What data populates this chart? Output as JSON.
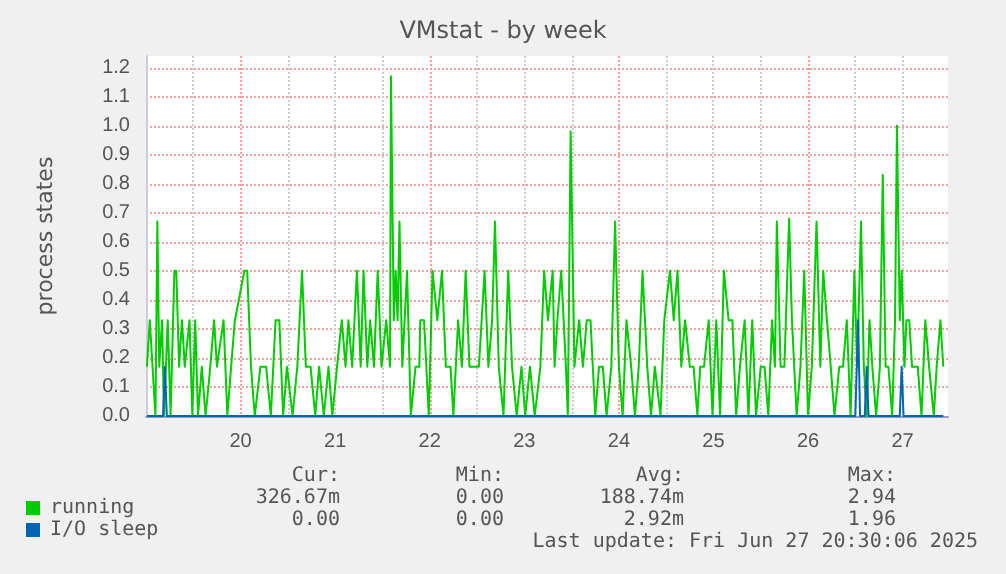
{
  "chart_data": {
    "type": "line",
    "title": "VMstat - by week",
    "ylabel": "process states",
    "xlim": [
      19.0,
      27.48
    ],
    "xticks": [
      20,
      21,
      22,
      23,
      24,
      25,
      26,
      27
    ],
    "ylim": [
      0,
      1.24
    ],
    "yticks": [
      {
        "value": 0,
        "label": "0.0"
      },
      {
        "value": 0.1,
        "label": "0.1"
      },
      {
        "value": 0.2,
        "label": "0.2"
      },
      {
        "value": 0.3,
        "label": "0.3"
      },
      {
        "value": 0.4,
        "label": "0.4"
      },
      {
        "value": 0.5,
        "label": "0.5"
      },
      {
        "value": 0.6,
        "label": "0.6"
      },
      {
        "value": 0.7,
        "label": "0.7"
      },
      {
        "value": 0.8,
        "label": "0.8"
      },
      {
        "value": 0.9,
        "label": "0.9"
      },
      {
        "value": 1,
        "label": "1.0"
      },
      {
        "value": 1.1,
        "label": "1.1"
      },
      {
        "value": 1.2,
        "label": "1.2"
      }
    ],
    "grid": true,
    "legend": "bottom left",
    "marker": "none",
    "line_style": "solid",
    "series": [
      {
        "name": "running",
        "color": "#00cc00",
        "x": [
          19.01,
          19.04,
          19.1,
          19.12,
          19.14,
          19.17,
          19.19,
          19.23,
          19.26,
          19.3,
          19.32,
          19.35,
          19.38,
          19.41,
          19.46,
          19.49,
          19.52,
          19.55,
          19.59,
          19.63,
          19.68,
          19.72,
          19.75,
          19.82,
          19.86,
          19.9,
          19.94,
          20.04,
          20.07,
          20.11,
          20.15,
          20.21,
          20.27,
          20.32,
          20.37,
          20.41,
          20.45,
          20.49,
          20.55,
          20.6,
          20.65,
          20.69,
          20.74,
          20.79,
          20.83,
          20.88,
          20.93,
          20.97,
          21.02,
          21.07,
          21.11,
          21.14,
          21.18,
          21.23,
          21.27,
          21.3,
          21.34,
          21.37,
          21.41,
          21.45,
          21.49,
          21.54,
          21.58,
          21.59,
          21.62,
          21.64,
          21.66,
          21.68,
          21.71,
          21.76,
          21.8,
          21.85,
          21.89,
          21.9,
          21.94,
          21.99,
          22.03,
          22.08,
          22.13,
          22.17,
          22.22,
          22.25,
          22.3,
          22.34,
          22.38,
          22.42,
          22.48,
          22.52,
          22.58,
          22.62,
          22.66,
          22.69,
          22.73,
          22.78,
          22.83,
          22.87,
          22.92,
          22.97,
          23.01,
          23.06,
          23.11,
          23.17,
          23.21,
          23.25,
          23.3,
          23.32,
          23.35,
          23.39,
          23.44,
          23.46,
          23.49,
          23.53,
          23.58,
          23.62,
          23.66,
          23.7,
          23.75,
          23.79,
          23.83,
          23.87,
          23.92,
          23.96,
          24.0,
          24.04,
          24.08,
          24.13,
          24.17,
          24.21,
          24.25,
          24.3,
          24.34,
          24.38,
          24.44,
          24.48,
          24.54,
          24.58,
          24.62,
          24.66,
          24.7,
          24.75,
          24.79,
          24.83,
          24.86,
          24.9,
          24.95,
          24.99,
          25.03,
          25.07,
          25.11,
          25.16,
          25.2,
          25.24,
          25.28,
          25.33,
          25.37,
          25.41,
          25.45,
          25.5,
          25.54,
          25.58,
          25.62,
          25.65,
          25.67,
          25.71,
          25.75,
          25.8,
          25.83,
          25.88,
          25.92,
          25.96,
          26.0,
          26.04,
          26.09,
          26.13,
          26.16,
          26.2,
          26.24,
          26.28,
          26.33,
          26.37,
          26.41,
          26.45,
          26.49,
          26.52,
          26.56,
          26.59,
          26.62,
          26.65,
          26.68,
          26.72,
          26.76,
          26.79,
          26.82,
          26.85,
          26.89,
          26.92,
          26.94,
          26.97,
          26.99,
          27.02,
          27.04,
          27.07,
          27.1,
          27.16,
          27.2,
          27.24,
          27.28,
          27.33,
          27.36,
          27.4,
          27.43
        ],
        "values": [
          0.17,
          0.33,
          0,
          0.67,
          0.17,
          0.33,
          0,
          0.33,
          0,
          0.5,
          0.5,
          0.17,
          0.33,
          0.17,
          0.33,
          0,
          0.33,
          0,
          0.17,
          0,
          0.17,
          0.33,
          0.17,
          0.33,
          0,
          0.17,
          0.33,
          0.5,
          0.5,
          0.17,
          0,
          0.17,
          0.17,
          0,
          0.33,
          0.33,
          0,
          0.17,
          0,
          0.17,
          0.5,
          0.17,
          0.17,
          0,
          0.17,
          0,
          0.17,
          0,
          0.17,
          0.33,
          0.17,
          0.33,
          0.17,
          0.5,
          0.17,
          0.5,
          0.17,
          0.33,
          0.17,
          0.5,
          0.17,
          0.33,
          0.17,
          1.17,
          0.33,
          0.5,
          0.33,
          0.67,
          0.17,
          0.5,
          0,
          0.17,
          0.17,
          0.33,
          0.33,
          0,
          0.5,
          0.33,
          0.5,
          0.17,
          0.17,
          0,
          0.33,
          0.17,
          0.5,
          0.17,
          0.17,
          0.17,
          0.5,
          0.17,
          0.33,
          0.67,
          0.17,
          0,
          0.5,
          0.17,
          0,
          0.17,
          0,
          0.17,
          0,
          0.17,
          0.5,
          0.33,
          0.5,
          0.17,
          0.33,
          0.5,
          0.17,
          0,
          0.98,
          0.17,
          0.33,
          0.17,
          0.33,
          0.33,
          0,
          0.17,
          0.17,
          0,
          0.17,
          0.67,
          0.17,
          0,
          0.33,
          0.17,
          0,
          0.17,
          0.5,
          0.17,
          0,
          0.17,
          0,
          0.33,
          0.5,
          0.33,
          0.5,
          0.17,
          0.33,
          0.17,
          0.17,
          0,
          0.17,
          0.17,
          0.33,
          0,
          0.33,
          0,
          0.5,
          0.33,
          0.33,
          0,
          0.17,
          0.33,
          0,
          0.33,
          0,
          0.17,
          0.17,
          0,
          0.33,
          0.17,
          0.67,
          0.17,
          0.17,
          0.68,
          0.33,
          0,
          0.17,
          0.5,
          0,
          0.17,
          0.67,
          0.17,
          0.5,
          0.33,
          0.17,
          0,
          0.17,
          0.17,
          0.33,
          0,
          0.5,
          0.17,
          0.67,
          0.17,
          0,
          0.33,
          0.17,
          0,
          0.17,
          0.83,
          0.17,
          0.17,
          0,
          0.33,
          1.0,
          0.33,
          0.5,
          0.17,
          0.33,
          0.33,
          0.17,
          0.17,
          0,
          0.33,
          0.17,
          0,
          0.17,
          0.33,
          0.17
        ]
      },
      {
        "name": "I/O sleep",
        "color": "#0066b3",
        "x": [
          19.01,
          19.18,
          19.2,
          19.22,
          26.5,
          26.53,
          26.55,
          26.6,
          26.62,
          26.64,
          26.97,
          26.99,
          27.01,
          27.43
        ],
        "values": [
          0,
          0,
          0.17,
          0,
          0,
          0.33,
          0,
          0,
          0.17,
          0,
          0,
          0.17,
          0,
          0
        ]
      }
    ],
    "annotations": [
      "Cur:",
      "Min:",
      "Avg:",
      "Max:",
      "326.67m",
      "0.00",
      "188.74m",
      "2.94",
      "0.00",
      "0.00",
      "2.92m",
      "1.96",
      "Last update: Fri Jun 27 20:30:06 2025"
    ]
  }
}
